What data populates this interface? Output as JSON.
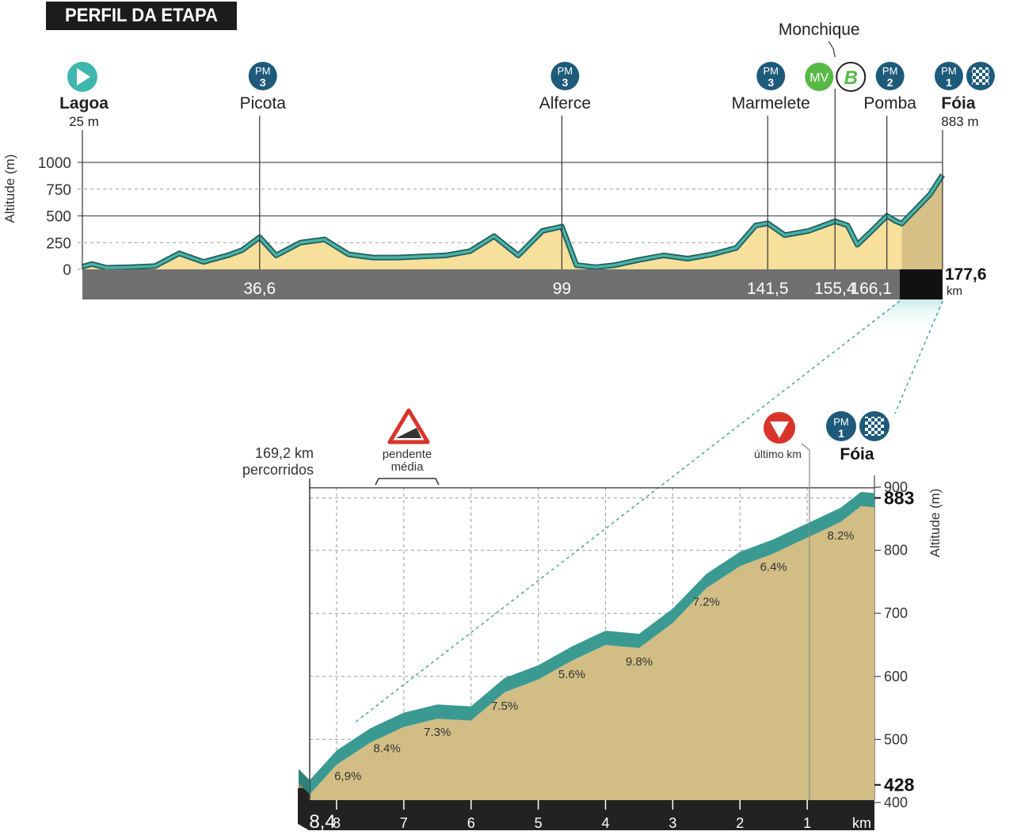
{
  "title": "PERFIL DA ETAPA",
  "colors": {
    "line": "#3a9a92",
    "line_dark": "#1e5d59",
    "fill_light": "#f7df9c",
    "fill_final": "#d7c085",
    "fill_zoom": "#d2bd85",
    "axis_band": "#707070",
    "final_band": "#111111",
    "pm_badge": "#1e5a7a",
    "start_icon": "#3fb6ae",
    "mv_badge": "#58b947",
    "warning_red": "#d9342b"
  },
  "overview": {
    "ylabel": "Altitude (m)",
    "yticks": [
      "1000",
      "750",
      "500",
      "250",
      "0"
    ],
    "start": {
      "name": "Lagoa",
      "altitude": "25 m",
      "km": 0
    },
    "finish": {
      "name": "Fóia",
      "altitude": "883 m",
      "km_label": "177,6",
      "km_unit": "km",
      "km": 177.6
    },
    "points": [
      {
        "name": "Picota",
        "km_label": "36,6",
        "km": 36.6,
        "badge_top": "PM",
        "badge_num": "3"
      },
      {
        "name": "Alferce",
        "km_label": "99",
        "km": 99,
        "badge_top": "PM",
        "badge_num": "3"
      },
      {
        "name": "Marmelete",
        "km_label": "141,5",
        "km": 141.5,
        "badge_top": "PM",
        "badge_num": "3"
      },
      {
        "name": "Monchique",
        "km_label": "155,4",
        "km": 155.4,
        "badges": [
          "MV",
          "B"
        ]
      },
      {
        "name": "Pomba",
        "km_label": "166,1",
        "km": 166.1,
        "badge_top": "PM",
        "badge_num": "2"
      }
    ],
    "finish_badge": {
      "top": "PM",
      "num": "1"
    }
  },
  "zoom": {
    "start_label_line1": "169,2 km",
    "start_label_line2": "percorridos",
    "avg_grade_line1": "pendente",
    "avg_grade_line2": "média",
    "last_km_label": "último km",
    "finish_name": "Fóia",
    "finish_badge": {
      "top": "PM",
      "num": "1"
    },
    "ylabel": "Altitude (m)",
    "yticks": [
      "900",
      "800",
      "700",
      "600",
      "500",
      "400"
    ],
    "start_altitude": "428",
    "finish_altitude": "883",
    "xticks": [
      "8,4",
      "8",
      "7",
      "6",
      "5",
      "4",
      "3",
      "2",
      "1",
      "km"
    ],
    "gradients": [
      "6,9%",
      "8.4%",
      "7.3%",
      "7.5%",
      "5.6%",
      "9.8%",
      "7.2%",
      "6.4%",
      "8.2%"
    ]
  },
  "chart_data": [
    {
      "type": "area",
      "title": "PERFIL DA ETAPA",
      "xlabel": "km",
      "ylabel": "Altitude (m)",
      "ylim": [
        0,
        1000
      ],
      "xlim": [
        0,
        177.6
      ],
      "x": [
        0,
        2,
        5,
        10,
        15,
        20,
        25,
        30,
        33,
        36.6,
        40,
        45,
        50,
        55,
        60,
        65,
        70,
        75,
        80,
        85,
        90,
        95,
        99,
        102,
        106,
        110,
        115,
        120,
        125,
        130,
        135,
        139,
        141.5,
        145,
        150,
        155.4,
        158,
        160,
        163,
        166.1,
        168,
        169.2,
        172,
        175,
        177.6
      ],
      "y": [
        25,
        50,
        15,
        20,
        30,
        150,
        70,
        130,
        180,
        300,
        130,
        250,
        280,
        140,
        110,
        110,
        120,
        130,
        170,
        310,
        130,
        360,
        400,
        40,
        20,
        40,
        90,
        130,
        100,
        140,
        200,
        410,
        430,
        320,
        360,
        450,
        410,
        230,
        360,
        500,
        450,
        428,
        560,
        700,
        883
      ]
    },
    {
      "type": "area",
      "title": "",
      "xlabel": "km",
      "ylabel": "Altitude (m)",
      "ylim": [
        400,
        900
      ],
      "xlim": [
        8.4,
        0
      ],
      "x": [
        8.4,
        8,
        7.5,
        7,
        6.5,
        6,
        5.5,
        5,
        4.5,
        4,
        3.5,
        3,
        2.5,
        2,
        1.5,
        1,
        0.5,
        0.2,
        0
      ],
      "y": [
        428,
        475,
        510,
        535,
        548,
        545,
        590,
        610,
        640,
        665,
        660,
        700,
        755,
        790,
        810,
        835,
        860,
        885,
        883
      ],
      "segment_gradients": [
        "6,9%",
        "8.4%",
        "7.3%",
        "7.5%",
        "5.6%",
        "9.8%",
        "7.2%",
        "6.4%",
        "8.2%"
      ]
    }
  ]
}
